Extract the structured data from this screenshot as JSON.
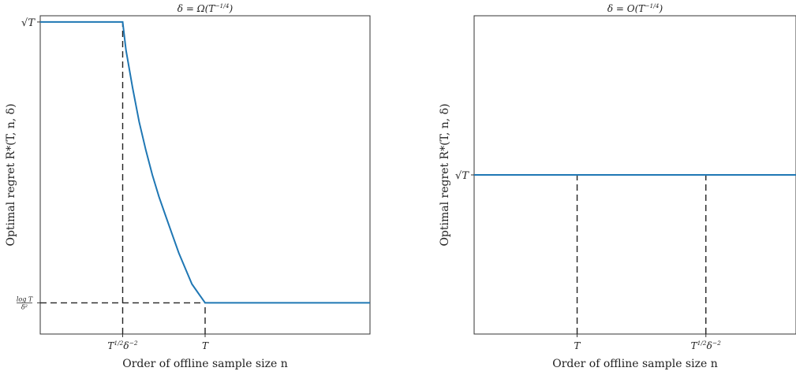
{
  "colors": {
    "curve": "#1f77b4",
    "axes": "#333333",
    "guide": "#222222"
  },
  "chart_data": [
    {
      "type": "line",
      "title": "δ = Ω(T^{−1/4})",
      "xlabel": "Order of offline sample size n",
      "ylabel": "Optimal regret R*(T, n, δ)",
      "x_ticks": [
        {
          "text": "T^{1/2}δ^{−2}",
          "x": 0.25
        },
        {
          "text": "T",
          "x": 0.5
        }
      ],
      "y_ticks": [
        {
          "text": "√T",
          "y": 1.0
        },
        {
          "text": "log T / δ²",
          "y": 0.1
        }
      ],
      "xlim": [
        0,
        1
      ],
      "ylim": [
        0,
        1.02
      ],
      "grid": false,
      "series": [
        {
          "x": [
            0,
            0.25,
            0.26,
            0.28,
            0.3,
            0.32,
            0.34,
            0.36,
            0.38,
            0.4,
            0.42,
            0.44,
            0.46,
            0.48,
            0.5,
            1.0
          ],
          "y": [
            1.0,
            1.0,
            0.91,
            0.79,
            0.68,
            0.59,
            0.51,
            0.44,
            0.38,
            0.32,
            0.26,
            0.21,
            0.16,
            0.13,
            0.1,
            0.1
          ]
        }
      ],
      "guides": [
        {
          "kind": "v",
          "x": 0.25,
          "y_top": 1.0
        },
        {
          "kind": "v",
          "x": 0.5,
          "y_top": 0.1
        },
        {
          "kind": "h",
          "y": 0.1,
          "x_end": 0.5
        }
      ]
    },
    {
      "type": "line",
      "title": "δ = O(T^{−1/4})",
      "xlabel": "Order of offline sample size n",
      "ylabel": "Optimal regret R*(T, n, δ)",
      "x_ticks": [
        {
          "text": "T",
          "x": 0.32
        },
        {
          "text": "T^{1/2}δ^{−2}",
          "x": 0.72
        }
      ],
      "y_ticks": [
        {
          "text": "√T",
          "y": 0.5
        }
      ],
      "xlim": [
        0,
        1
      ],
      "ylim": [
        0,
        1
      ],
      "grid": false,
      "series": [
        {
          "x": [
            0,
            1
          ],
          "y": [
            0.5,
            0.5
          ]
        }
      ],
      "guides": [
        {
          "kind": "v",
          "x": 0.32,
          "y_top": 0.5
        },
        {
          "kind": "v",
          "x": 0.72,
          "y_top": 0.5
        }
      ]
    }
  ]
}
